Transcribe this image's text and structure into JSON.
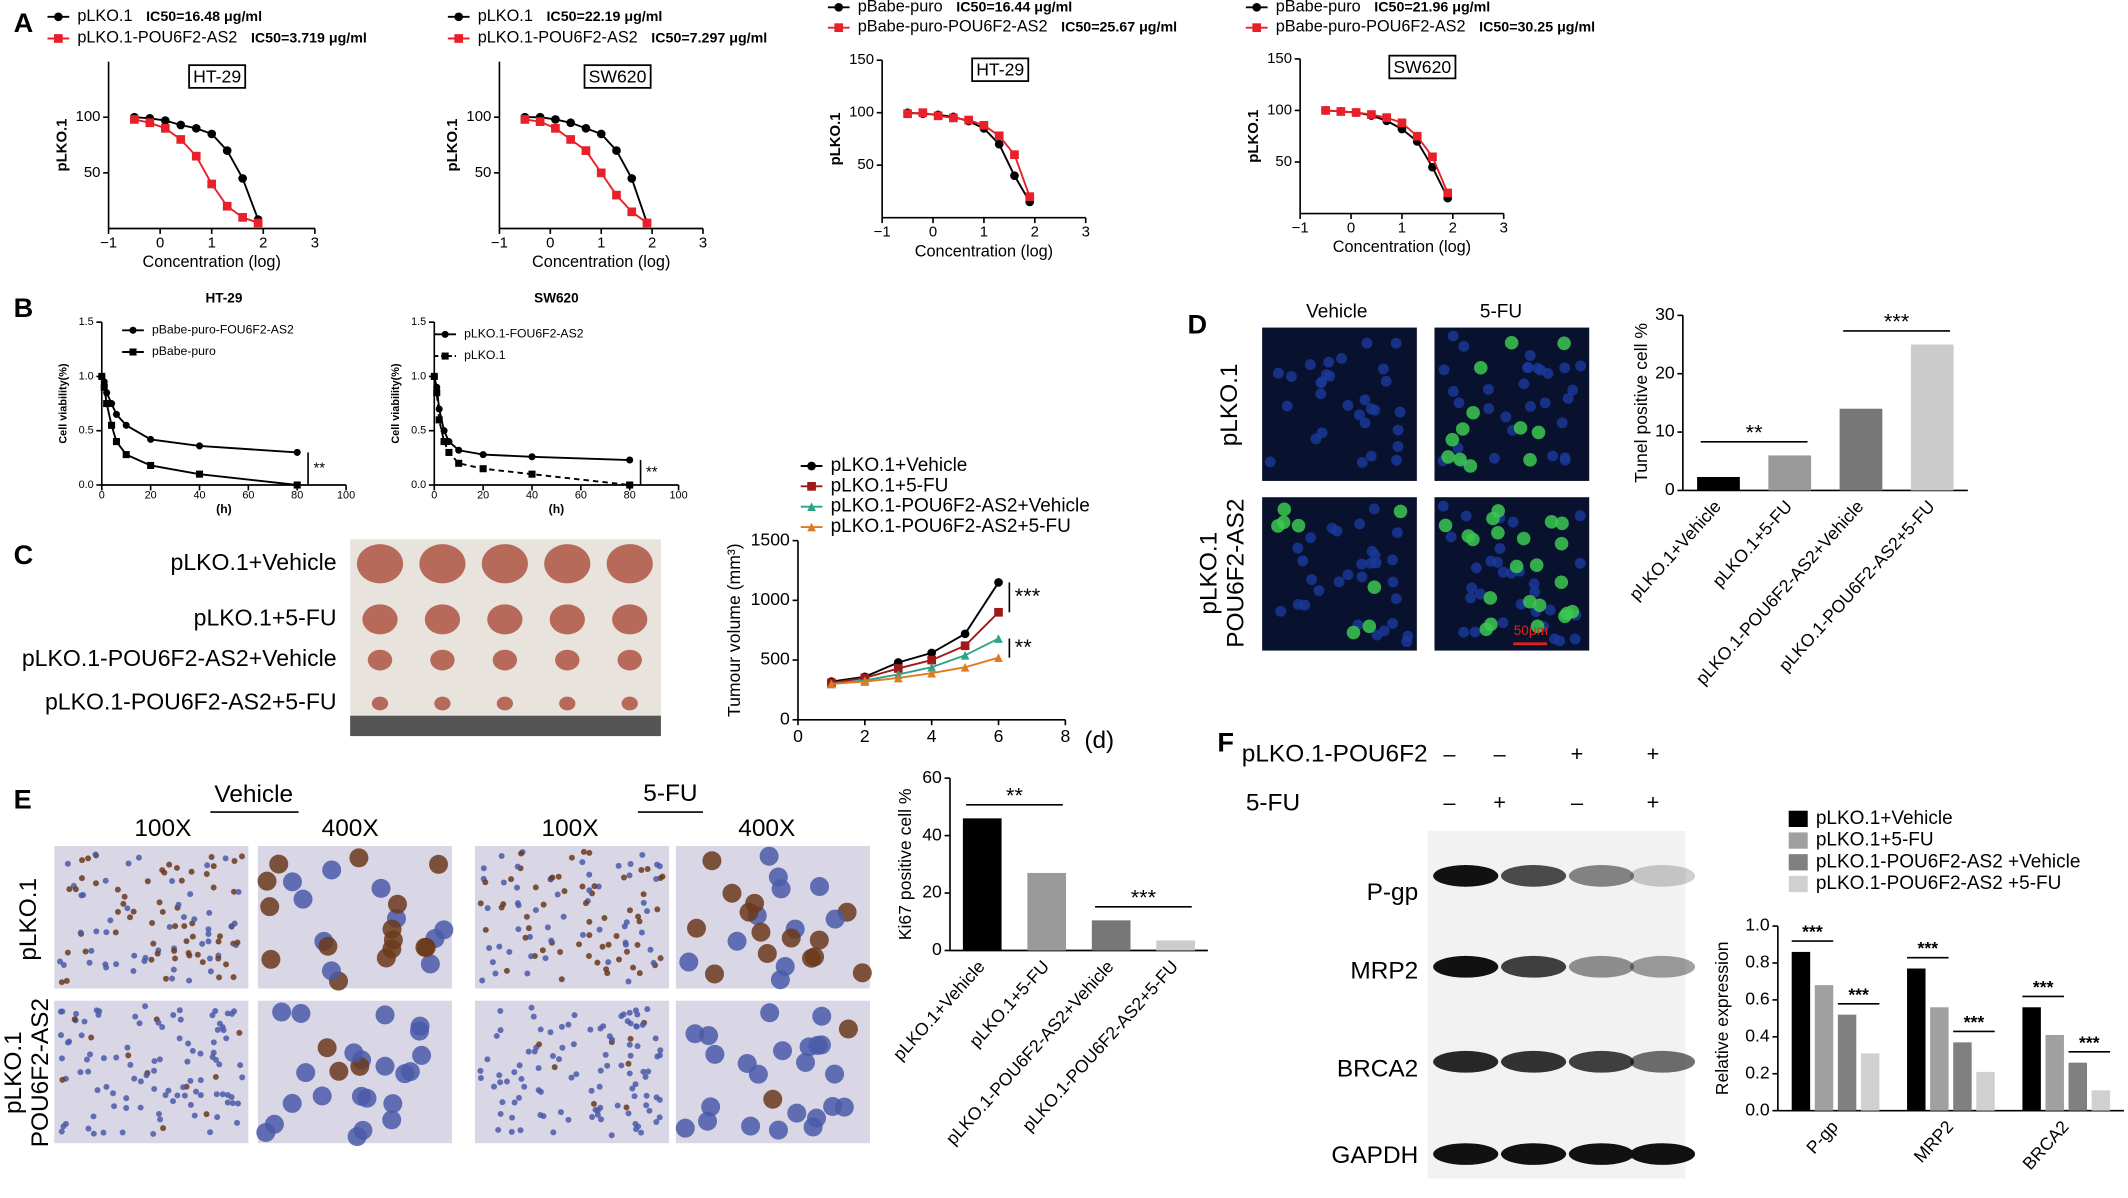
{
  "panel_letters": [
    "A",
    "B",
    "C",
    "D",
    "E",
    "F"
  ],
  "panel_c": {
    "groups": [
      "pLKO.1+Vehicle",
      "pLKO.1+5-FU",
      "pLKO.1-POU6F2-AS2+Vehicle",
      "pLKO.1-POU6F2-AS2+5-FU"
    ]
  },
  "panel_d": {
    "columns": [
      "Vehicle",
      "5-FU"
    ],
    "rows": [
      [
        "pLKO.1"
      ],
      [
        "pLKO.1",
        "POU6F2-AS2"
      ]
    ],
    "scale_bar": "50μm"
  },
  "panel_e": {
    "columns": [
      "Vehicle",
      "5-FU"
    ],
    "magnifications": [
      "100X",
      "400X",
      "100X",
      "400X"
    ],
    "rows": [
      [
        "pLKO.1"
      ],
      [
        "pLKO.1",
        "POU6F2-AS2"
      ]
    ]
  },
  "panel_f": {
    "rows": [
      {
        "label": "pLKO.1-POU6F2",
        "signs": [
          "–",
          "–",
          "+",
          "+"
        ]
      },
      {
        "label": "5-FU",
        "signs": [
          "–",
          "+",
          "–",
          "+"
        ]
      }
    ],
    "proteins": [
      "P-gp",
      "MRP2",
      "BRCA2",
      "GAPDH"
    ]
  },
  "chart_data": [
    {
      "type": "line",
      "label": "HT-29",
      "ylabel": "pLKO.1",
      "xlabel": "Concentration (log)",
      "xlim": [
        -1,
        3
      ],
      "xticks": [
        {
          "value": -1,
          "label": "−1"
        },
        0,
        1,
        2,
        3
      ],
      "ylim": [
        0,
        150
      ],
      "yticks": [
        50,
        100
      ],
      "x": [
        -0.5,
        -0.2,
        0.1,
        0.4,
        0.7,
        1.0,
        1.3,
        1.6,
        1.9
      ],
      "series": [
        {
          "name": "pLKO.1",
          "ic50": "IC50=16.48 μg/ml",
          "color": "#000000",
          "marker": "circle",
          "values": [
            100,
            99,
            97,
            93,
            90,
            85,
            70,
            45,
            8
          ]
        },
        {
          "name": "pLKO.1-POU6F2-AS2",
          "ic50": "IC50=3.719 μg/ml",
          "color": "#e8202a",
          "marker": "square",
          "values": [
            98,
            95,
            90,
            80,
            65,
            40,
            20,
            10,
            5
          ]
        }
      ]
    },
    {
      "type": "line",
      "label": "SW620",
      "ylabel": "pLKO.1",
      "xlabel": "Concentration (log)",
      "xlim": [
        -1,
        3
      ],
      "xticks": [
        {
          "value": -1,
          "label": "−1"
        },
        0,
        1,
        2,
        3
      ],
      "ylim": [
        0,
        150
      ],
      "yticks": [
        50,
        100
      ],
      "x": [
        -0.5,
        -0.2,
        0.1,
        0.4,
        0.7,
        1.0,
        1.3,
        1.6,
        1.9
      ],
      "series": [
        {
          "name": "pLKO.1",
          "ic50": "IC50=22.19 μg/ml",
          "color": "#000000",
          "marker": "circle",
          "values": [
            100,
            100,
            98,
            95,
            90,
            85,
            70,
            45,
            5
          ]
        },
        {
          "name": "pLKO.1-POU6F2-AS2",
          "ic50": "IC50=7.297 μg/ml",
          "color": "#e8202a",
          "marker": "square",
          "values": [
            98,
            96,
            90,
            80,
            70,
            50,
            30,
            15,
            5
          ]
        }
      ]
    },
    {
      "type": "line",
      "label": "HT-29",
      "ylabel": "pLKO.1",
      "xlabel": "Concentration (log)",
      "xlim": [
        -1,
        3
      ],
      "xticks": [
        {
          "value": -1,
          "label": "−1"
        },
        0,
        1,
        2,
        3
      ],
      "ylim": [
        0,
        150
      ],
      "yticks": [
        50,
        100,
        150
      ],
      "x": [
        -0.5,
        -0.2,
        0.1,
        0.4,
        0.7,
        1.0,
        1.3,
        1.6,
        1.9
      ],
      "series": [
        {
          "name": "pBabe-puro",
          "ic50": "IC50=16.44 μg/ml",
          "color": "#000000",
          "marker": "circle",
          "values": [
            100,
            99,
            98,
            96,
            92,
            85,
            70,
            40,
            15
          ]
        },
        {
          "name": "pBabe-puro-POU6F2-AS2",
          "ic50": "IC50=25.67 μg/ml",
          "color": "#e8202a",
          "marker": "square",
          "values": [
            99,
            100,
            97,
            95,
            93,
            88,
            78,
            60,
            20
          ]
        }
      ]
    },
    {
      "type": "line",
      "label": "SW620",
      "ylabel": "pLKO.1",
      "xlabel": "Concentration (log)",
      "xlim": [
        -1,
        3
      ],
      "xticks": [
        {
          "value": -1,
          "label": "−1"
        },
        0,
        1,
        2,
        3
      ],
      "ylim": [
        0,
        150
      ],
      "yticks": [
        50,
        100,
        150
      ],
      "x": [
        -0.5,
        -0.2,
        0.1,
        0.4,
        0.7,
        1.0,
        1.3,
        1.6,
        1.9
      ],
      "series": [
        {
          "name": "pBabe-puro",
          "ic50": "IC50=21.96 μg/ml",
          "color": "#000000",
          "marker": "circle",
          "values": [
            100,
            99,
            98,
            95,
            90,
            82,
            70,
            45,
            15
          ]
        },
        {
          "name": "pBabe-puro-POU6F2-AS2",
          "ic50": "IC50=30.25 μg/ml",
          "color": "#e8202a",
          "marker": "square",
          "values": [
            100,
            99,
            98,
            96,
            93,
            88,
            75,
            55,
            20
          ]
        }
      ]
    },
    {
      "type": "line",
      "title": "HT-29",
      "ylabel": "Cell viability(%)",
      "xlabel": "(h)",
      "xlim": [
        0,
        100
      ],
      "xticks": [
        0,
        20,
        40,
        60,
        80,
        100
      ],
      "ylim": [
        0,
        1.5
      ],
      "yticks": [
        {
          "value": 0,
          "label": "0.0"
        },
        {
          "value": 0.5,
          "label": "0.5"
        },
        {
          "value": 1,
          "label": "1.0"
        },
        {
          "value": 1.5,
          "label": "1.5"
        }
      ],
      "x": [
        0,
        1,
        2,
        4,
        6,
        10,
        20,
        40,
        80
      ],
      "annotations": [
        "**"
      ],
      "series": [
        {
          "name": "pBabe-puro-FOU6F2-AS2",
          "color": "#000000",
          "marker": "circle",
          "values": [
            1.0,
            0.95,
            0.85,
            0.75,
            0.65,
            0.55,
            0.42,
            0.36,
            0.3
          ]
        },
        {
          "name": "pBabe-puro",
          "color": "#000000",
          "marker": "square",
          "values": [
            1.0,
            0.9,
            0.75,
            0.55,
            0.4,
            0.28,
            0.18,
            0.1,
            0.0
          ]
        }
      ]
    },
    {
      "type": "line",
      "title": "SW620",
      "ylabel": "Cell viability(%)",
      "xlabel": "(h)",
      "xlim": [
        0,
        100
      ],
      "xticks": [
        0,
        20,
        40,
        60,
        80,
        100
      ],
      "ylim": [
        0,
        1.5
      ],
      "yticks": [
        {
          "value": 0,
          "label": "0.0"
        },
        {
          "value": 0.5,
          "label": "0.5"
        },
        {
          "value": 1,
          "label": "1.0"
        },
        {
          "value": 1.5,
          "label": "1.5"
        }
      ],
      "x": [
        0,
        1,
        2,
        4,
        6,
        10,
        20,
        40,
        80
      ],
      "annotations": [
        "**"
      ],
      "series": [
        {
          "name": "pLKO.1-FOU6F2-AS2",
          "color": "#000000",
          "marker": "circle",
          "values": [
            1.0,
            0.9,
            0.7,
            0.5,
            0.4,
            0.32,
            0.28,
            0.26,
            0.23
          ]
        },
        {
          "name": "pLKO.1",
          "color": "#000000",
          "marker": "square",
          "dashed": true,
          "values": [
            1.0,
            0.85,
            0.6,
            0.4,
            0.3,
            0.2,
            0.15,
            0.1,
            0.0
          ]
        }
      ]
    },
    {
      "type": "line",
      "ylabel": "Tumour volume (mm³)",
      "xlabel": "(d)",
      "xlim": [
        0,
        8
      ],
      "xticks": [
        0,
        2,
        4,
        6,
        8
      ],
      "ylim": [
        0,
        1500
      ],
      "yticks": [
        0,
        500,
        1000,
        1500
      ],
      "x": [
        1,
        2,
        3,
        4,
        5,
        6
      ],
      "annotations": [
        "***",
        "**"
      ],
      "series": [
        {
          "name": "pLKO.1+Vehicle",
          "color": "#000000",
          "marker": "circle",
          "values": [
            320,
            360,
            480,
            560,
            720,
            1150
          ]
        },
        {
          "name": "pLKO.1+5-FU",
          "color": "#a01818",
          "marker": "square",
          "values": [
            310,
            350,
            430,
            500,
            620,
            900
          ]
        },
        {
          "name": "pLKO.1-POU6F2-AS2+Vehicle",
          "color": "#2aa58a",
          "marker": "triangle",
          "values": [
            300,
            330,
            380,
            440,
            540,
            680
          ]
        },
        {
          "name": "pLKO.1-POU6F2-AS2+5-FU",
          "color": "#e07a20",
          "marker": "triangle",
          "values": [
            300,
            320,
            350,
            390,
            440,
            520
          ]
        }
      ]
    },
    {
      "type": "bar",
      "ylabel": "Tunel positive cell %",
      "ylim": [
        0,
        30
      ],
      "yticks": [
        0,
        10,
        20,
        30
      ],
      "categories": [
        "pLKO.1+Vehicle",
        "pLKO.1+5-FU",
        "pLKO.1-POU6F2-AS2+Vehicle",
        "pLKO.1-POU6F2-AS2+5-FU"
      ],
      "values": [
        2.3,
        6,
        14,
        25
      ],
      "colors": [
        "#000000",
        "#9a9a9a",
        "#777777",
        "#cccccc"
      ],
      "annotations": [
        "**",
        "***"
      ]
    },
    {
      "type": "bar",
      "ylabel": "Ki67 positive cell %",
      "ylim": [
        0,
        60
      ],
      "yticks": [
        0,
        20,
        40,
        60
      ],
      "categories": [
        "pLKO.1+Vehicle",
        "pLKO.1+5-FU",
        "pLKO.1-POU6F2-AS2+Vehicle",
        "pLKO.1-POU6F2-AS2+5-FU"
      ],
      "values": [
        46,
        27,
        10.5,
        3.5
      ],
      "colors": [
        "#000000",
        "#9a9a9a",
        "#777777",
        "#cccccc"
      ],
      "annotations": [
        "**",
        "***"
      ]
    },
    {
      "type": "grouped_bar",
      "ylabel": "Relative expression",
      "ylim": [
        0,
        1
      ],
      "yticks": [
        {
          "value": 0,
          "label": "0.0"
        },
        {
          "value": 0.2,
          "label": "0.2"
        },
        {
          "value": 0.4,
          "label": "0.4"
        },
        {
          "value": 0.6,
          "label": "0.6"
        },
        {
          "value": 0.8,
          "label": "0.8"
        },
        {
          "value": 1,
          "label": "1.0"
        }
      ],
      "categories": [
        "P-gp",
        "MRP2",
        "BRCA2"
      ],
      "annotations": [
        "***",
        "***",
        "***",
        "***",
        "***",
        "***"
      ],
      "series": [
        {
          "name": "pLKO.1+Vehicle",
          "color": "#000000",
          "values": [
            0.86,
            0.77,
            0.56
          ]
        },
        {
          "name": "pLKO.1+5-FU",
          "color": "#a0a0a0",
          "values": [
            0.68,
            0.56,
            0.41
          ]
        },
        {
          "name": "pLKO.1-POU6F2-AS2 +Vehicle",
          "color": "#808080",
          "values": [
            0.52,
            0.37,
            0.26
          ]
        },
        {
          "name": "pLKO.1-POU6F2-AS2 +5-FU",
          "color": "#d0d0d0",
          "values": [
            0.31,
            0.21,
            0.11
          ]
        }
      ]
    }
  ]
}
